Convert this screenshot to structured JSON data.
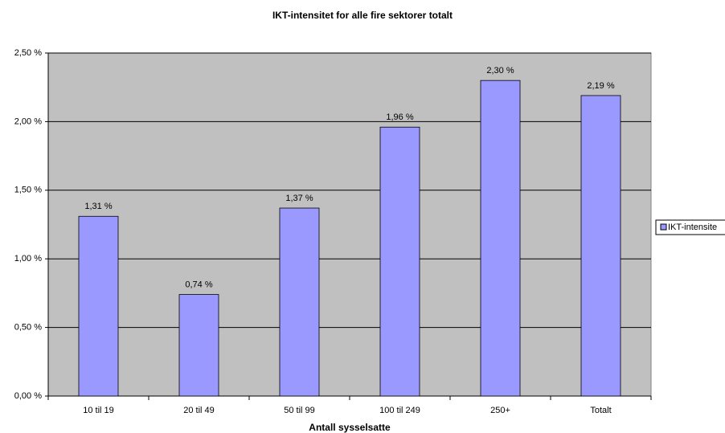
{
  "chart_data": {
    "type": "bar",
    "title": "IKT-intensitet for alle fire sektorer totalt",
    "x_label": "Antall sysselsatte",
    "categories": [
      "10 til 19",
      "20 til 49",
      "50 til 99",
      "100 til 249",
      "250+",
      "Totalt"
    ],
    "series": [
      {
        "name": "IKT-intensite",
        "color": "#9999ff",
        "values": [
          1.31,
          0.74,
          1.37,
          1.96,
          2.3,
          2.19
        ],
        "value_labels": [
          "1,31 %",
          "0,74 %",
          "1,37 %",
          "1,96 %",
          "2,30 %",
          "2,19 %"
        ]
      }
    ],
    "ylim": [
      0,
      2.5
    ],
    "yticks": [
      {
        "value": 0,
        "label": "0,00 %"
      },
      {
        "value": 0.5,
        "label": "0,50 %"
      },
      {
        "value": 1,
        "label": "1,00 %"
      },
      {
        "value": 1.5,
        "label": "1,50 %"
      },
      {
        "value": 2,
        "label": "2,00 %"
      },
      {
        "value": 2.5,
        "label": "2,50 %"
      }
    ],
    "grid": true,
    "background": "#c0c0c0",
    "legend": "right"
  }
}
